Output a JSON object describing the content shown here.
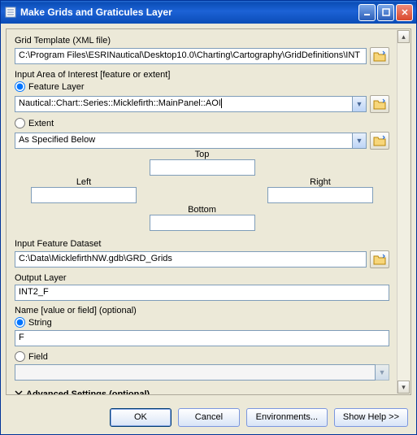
{
  "window": {
    "title": "Make Grids and Graticules Layer"
  },
  "grid_template": {
    "label": "Grid Template (XML file)",
    "value": "C:\\Program Files\\ESRINautical\\Desktop10.0\\Charting\\Cartography\\GridDefinitions\\INT"
  },
  "aoi": {
    "label": "Input Area of Interest [feature or extent]",
    "feature_layer": {
      "label": "Feature Layer",
      "checked": true
    },
    "feature_value": "Nautical::Chart::Series::Micklefirth::MainPanel::AOI",
    "extent": {
      "label": "Extent",
      "checked": false
    },
    "extent_value": "As Specified Below",
    "top_label": "Top",
    "left_label": "Left",
    "right_label": "Right",
    "bottom_label": "Bottom"
  },
  "feature_dataset": {
    "label": "Input Feature Dataset",
    "value": "C:\\Data\\MicklefirthNW.gdb\\GRD_Grids"
  },
  "output_layer": {
    "label": "Output Layer",
    "value": "INT2_F"
  },
  "name_opt": {
    "label": "Name [value or field] (optional)",
    "string": {
      "label": "String",
      "checked": true
    },
    "string_value": "F",
    "field": {
      "label": "Field",
      "checked": false
    },
    "field_value": ""
  },
  "advanced": {
    "label": "Advanced Settings (optional)"
  },
  "buttons": {
    "ok": "OK",
    "cancel": "Cancel",
    "environments": "Environments...",
    "show_help": "Show Help >>"
  },
  "colors": {
    "titlebar_start": "#2a6fd6",
    "titlebar_end": "#0b4db6",
    "panel_bg": "#ece9d8",
    "border": "#aca899",
    "input_border": "#7f9db9"
  }
}
